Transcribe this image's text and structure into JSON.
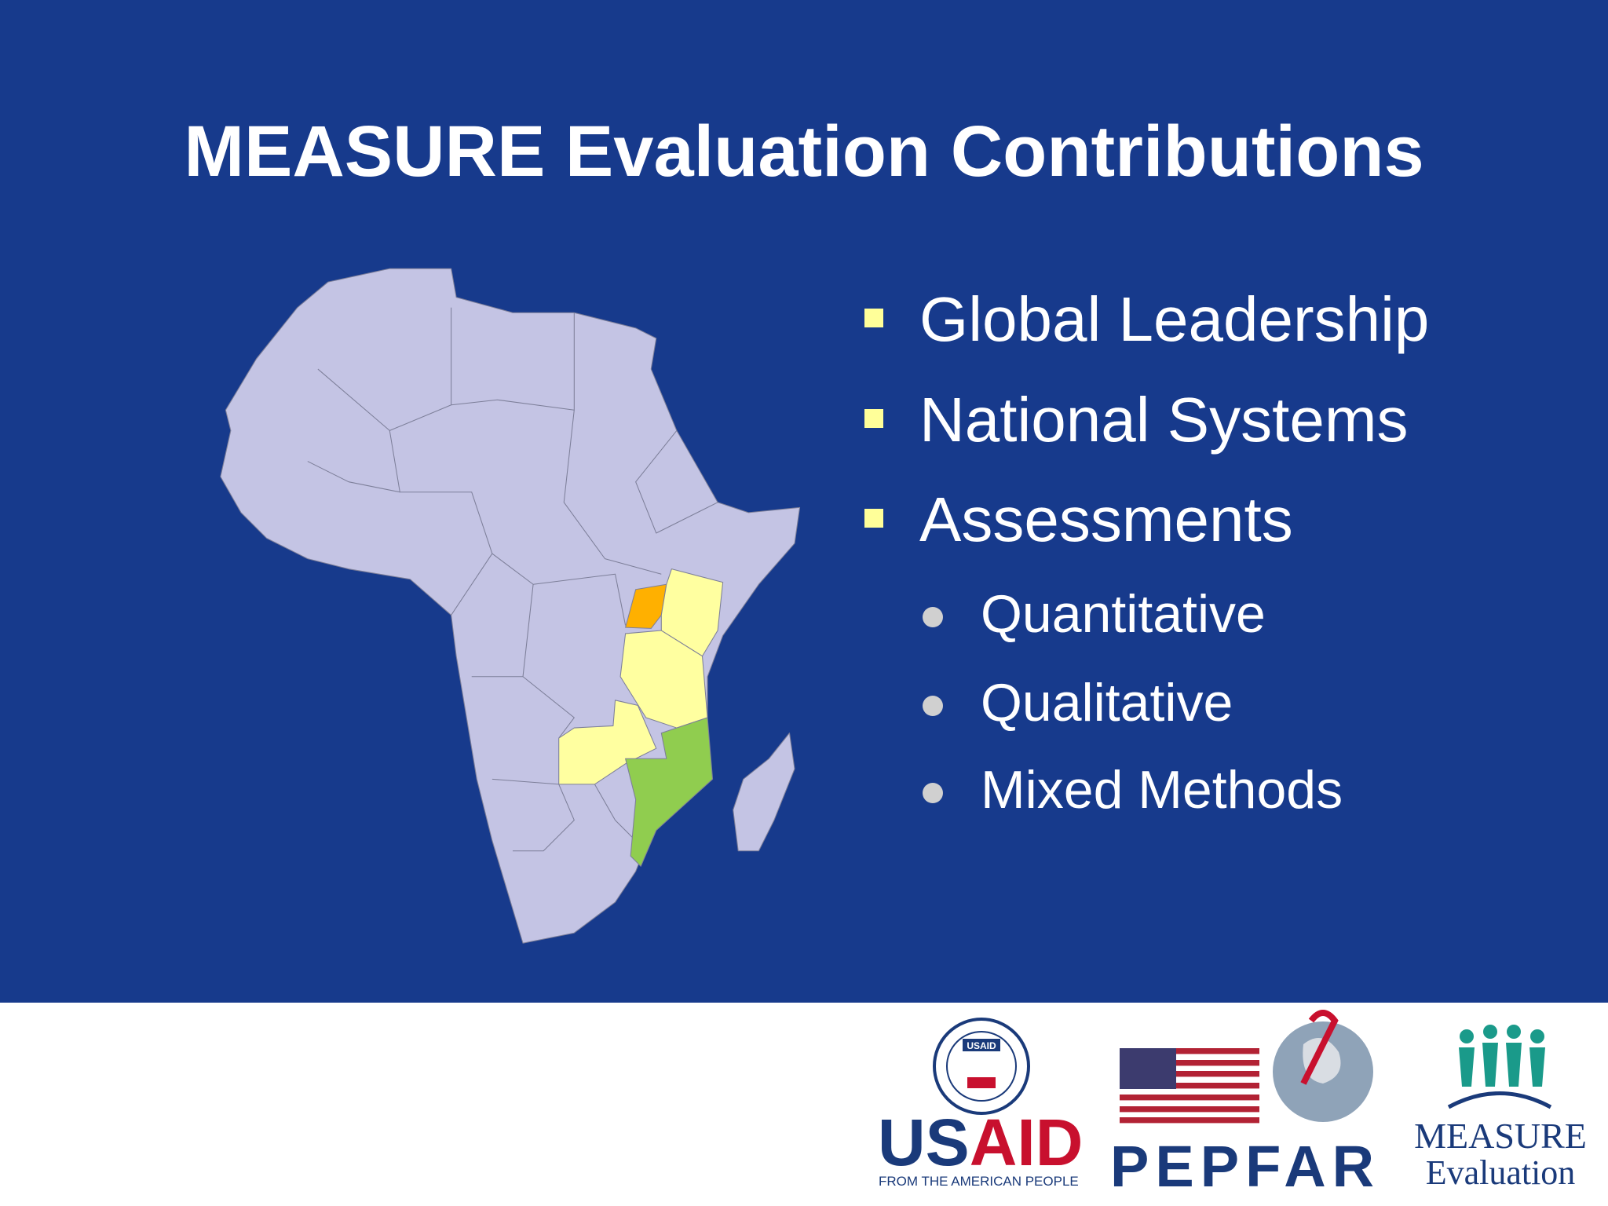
{
  "title": "MEASURE Evaluation Contributions",
  "bullets": [
    "Global Leadership",
    "National Systems",
    "Assessments"
  ],
  "sub_bullets": [
    "Quantitative",
    "Qualitative",
    "Mixed Methods"
  ],
  "logos": {
    "usaid": {
      "seal": "USAID",
      "name_part1": "US",
      "name_part2": "AID",
      "tagline": "FROM THE AMERICAN PEOPLE"
    },
    "pepfar": {
      "name": "PEPFAR"
    },
    "measure": {
      "name": "MEASURE",
      "subtitle": "Evaluation"
    }
  }
}
